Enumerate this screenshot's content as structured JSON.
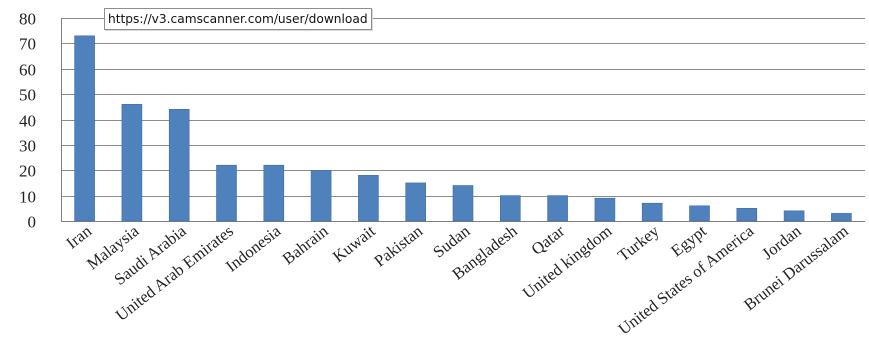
{
  "tooltip": {
    "url": "https://v3.camscanner.com/user/download"
  },
  "chart_data": {
    "type": "bar",
    "title": "",
    "xlabel": "",
    "ylabel": "",
    "ylim": [
      0,
      80
    ],
    "yticks": [
      0,
      10,
      20,
      30,
      40,
      50,
      60,
      70,
      80
    ],
    "grid": true,
    "legend": "none",
    "bar_color": "#4f81bd",
    "categories": [
      "Iran",
      "Malaysia",
      "Saudi Arabia",
      "United Arab Emirates",
      "Indonesia",
      "Bahrain",
      "Kuwait",
      "Pakistan",
      "Sudan",
      "Bangladesh",
      "Qatar",
      "United kingdom",
      "Turkey",
      "Egypt",
      "United States of America",
      "Jordan",
      "Brunei Darussalam"
    ],
    "values": [
      73,
      46,
      44,
      22,
      22,
      20,
      18,
      15,
      14,
      10,
      10,
      9,
      7,
      6,
      5,
      4,
      3
    ]
  }
}
